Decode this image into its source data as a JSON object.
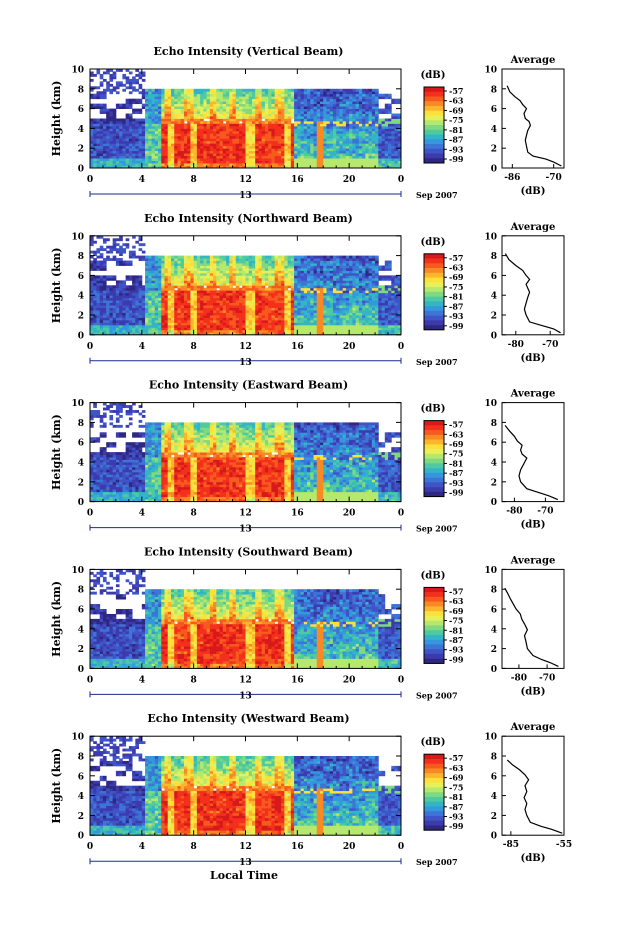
{
  "figure": {
    "xlabel_common": "Local Time",
    "date_label": "Sep 2007",
    "day_label": "13"
  },
  "colorbar": {
    "label": "(dB)",
    "ticks": [
      "-57",
      "-63",
      "-69",
      "-75",
      "-81",
      "-87",
      "-93",
      "-99"
    ],
    "colors": [
      "#d7191c",
      "#f4301c",
      "#f65a1f",
      "#f88a25",
      "#fbb52e",
      "#fde03a",
      "#e6f05a",
      "#b6e86d",
      "#7fd981",
      "#4fcaa0",
      "#33b5c6",
      "#3597dd",
      "#3d75d6",
      "#3f55c7",
      "#3d3aae",
      "#2e2880"
    ]
  },
  "chart_data": [
    {
      "type": "heatmap",
      "title": "Echo Intensity (Vertical Beam)",
      "ylabel": "Height (km)",
      "xlim": [
        0,
        24
      ],
      "ylim": [
        0,
        10
      ],
      "xticks": [
        "0",
        "4",
        "8",
        "12",
        "16",
        "20",
        "0"
      ],
      "yticks": [
        "0",
        "2",
        "4",
        "6",
        "8",
        "10"
      ],
      "avg": {
        "title": "Average",
        "xlabel": "(dB)",
        "xticks": [
          "-86",
          "-70"
        ],
        "yticks": [
          "0",
          "2",
          "4",
          "6",
          "8",
          "10"
        ],
        "xlim": [
          -90,
          -66
        ],
        "profile": [
          [
            -67,
            0.2
          ],
          [
            -70,
            0.6
          ],
          [
            -73,
            0.9
          ],
          [
            -78,
            1.2
          ],
          [
            -80,
            1.6
          ],
          [
            -80.5,
            2.2
          ],
          [
            -81,
            2.8
          ],
          [
            -80.5,
            3.3
          ],
          [
            -80,
            3.8
          ],
          [
            -79,
            4.3
          ],
          [
            -79.5,
            4.7
          ],
          [
            -81,
            5.0
          ],
          [
            -81.5,
            5.5
          ],
          [
            -80.5,
            6.0
          ],
          [
            -82,
            6.4
          ],
          [
            -83,
            6.8
          ],
          [
            -85,
            7.2
          ],
          [
            -87,
            7.7
          ],
          [
            -88,
            8.3
          ]
        ]
      }
    },
    {
      "type": "heatmap",
      "title": "Echo Intensity (Northward Beam)",
      "ylabel": "Height (km)",
      "xlim": [
        0,
        24
      ],
      "ylim": [
        0,
        10
      ],
      "xticks": [
        "0",
        "4",
        "8",
        "12",
        "16",
        "20",
        "0"
      ],
      "yticks": [
        "0",
        "2",
        "4",
        "6",
        "8",
        "10"
      ],
      "avg": {
        "title": "Average",
        "xlabel": "(dB)",
        "xticks": [
          "-80",
          "-70"
        ],
        "yticks": [
          "0",
          "2",
          "4",
          "6",
          "8",
          "10"
        ],
        "xlim": [
          -84,
          -66
        ],
        "profile": [
          [
            -67,
            0.2
          ],
          [
            -69,
            0.6
          ],
          [
            -72,
            0.9
          ],
          [
            -76,
            1.3
          ],
          [
            -77,
            2.0
          ],
          [
            -77.5,
            2.6
          ],
          [
            -77,
            3.2
          ],
          [
            -76.5,
            3.8
          ],
          [
            -76,
            4.3
          ],
          [
            -76.5,
            4.7
          ],
          [
            -77,
            5.1
          ],
          [
            -76,
            5.6
          ],
          [
            -77,
            6.0
          ],
          [
            -78,
            6.5
          ],
          [
            -80,
            7.0
          ],
          [
            -82,
            7.6
          ],
          [
            -83,
            8.2
          ]
        ]
      }
    },
    {
      "type": "heatmap",
      "title": "Echo Intensity (Eastward Beam)",
      "ylabel": "Height (km)",
      "xlim": [
        0,
        24
      ],
      "ylim": [
        0,
        10
      ],
      "xticks": [
        "0",
        "4",
        "8",
        "12",
        "16",
        "20",
        "0"
      ],
      "yticks": [
        "0",
        "2",
        "4",
        "6",
        "8",
        "10"
      ],
      "avg": {
        "title": "Average",
        "xlabel": "(dB)",
        "xticks": [
          "-80",
          "-70"
        ],
        "yticks": [
          "0",
          "2",
          "4",
          "6",
          "8",
          "10"
        ],
        "xlim": [
          -84,
          -64
        ],
        "profile": [
          [
            -66,
            0.2
          ],
          [
            -69,
            0.6
          ],
          [
            -72,
            0.9
          ],
          [
            -76,
            1.3
          ],
          [
            -78,
            2.0
          ],
          [
            -78.5,
            2.6
          ],
          [
            -78,
            3.2
          ],
          [
            -77,
            3.8
          ],
          [
            -76,
            4.4
          ],
          [
            -77.5,
            4.8
          ],
          [
            -78,
            5.2
          ],
          [
            -77.5,
            5.7
          ],
          [
            -79,
            6.1
          ],
          [
            -80,
            6.6
          ],
          [
            -81.5,
            7.1
          ],
          [
            -83,
            7.7
          ]
        ]
      }
    },
    {
      "type": "heatmap",
      "title": "Echo Intensity (Southward Beam)",
      "ylabel": "Height (km)",
      "xlim": [
        0,
        24
      ],
      "ylim": [
        0,
        10
      ],
      "xticks": [
        "0",
        "4",
        "8",
        "12",
        "16",
        "20",
        "0"
      ],
      "yticks": [
        "0",
        "2",
        "4",
        "6",
        "8",
        "10"
      ],
      "avg": {
        "title": "Average",
        "xlabel": "(dB)",
        "xticks": [
          "-80",
          "-70"
        ],
        "yticks": [
          "0",
          "2",
          "4",
          "6",
          "8",
          "10"
        ],
        "xlim": [
          -86,
          -64
        ],
        "profile": [
          [
            -66,
            0.2
          ],
          [
            -69,
            0.6
          ],
          [
            -72,
            0.9
          ],
          [
            -75,
            1.3
          ],
          [
            -77,
            2.0
          ],
          [
            -77.5,
            2.7
          ],
          [
            -78,
            3.3
          ],
          [
            -77,
            3.9
          ],
          [
            -78,
            4.5
          ],
          [
            -79,
            5.0
          ],
          [
            -79.5,
            5.5
          ],
          [
            -81,
            6.0
          ],
          [
            -82,
            6.5
          ],
          [
            -83,
            7.0
          ],
          [
            -84,
            7.6
          ],
          [
            -85,
            8.1
          ]
        ]
      }
    },
    {
      "type": "heatmap",
      "title": "Echo Intensity (Westward Beam)",
      "ylabel": "Height (km)",
      "xlim": [
        0,
        24
      ],
      "ylim": [
        0,
        10
      ],
      "xticks": [
        "0",
        "4",
        "8",
        "12",
        "16",
        "20",
        "0"
      ],
      "yticks": [
        "0",
        "2",
        "4",
        "6",
        "8",
        "10"
      ],
      "avg": {
        "title": "Average",
        "xlabel": "(dB)",
        "xticks": [
          "-85",
          "-55"
        ],
        "yticks": [
          "0",
          "2",
          "4",
          "6",
          "8",
          "10"
        ],
        "xlim": [
          -90,
          -55
        ],
        "profile": [
          [
            -56,
            0.2
          ],
          [
            -62,
            0.6
          ],
          [
            -68,
            0.9
          ],
          [
            -74,
            1.3
          ],
          [
            -76,
            2.0
          ],
          [
            -77,
            2.6
          ],
          [
            -76,
            3.2
          ],
          [
            -77.5,
            3.8
          ],
          [
            -76,
            4.4
          ],
          [
            -77,
            5.0
          ],
          [
            -75,
            5.6
          ],
          [
            -77,
            6.1
          ],
          [
            -80,
            6.6
          ],
          [
            -84,
            7.1
          ],
          [
            -87,
            7.6
          ]
        ]
      }
    }
  ]
}
